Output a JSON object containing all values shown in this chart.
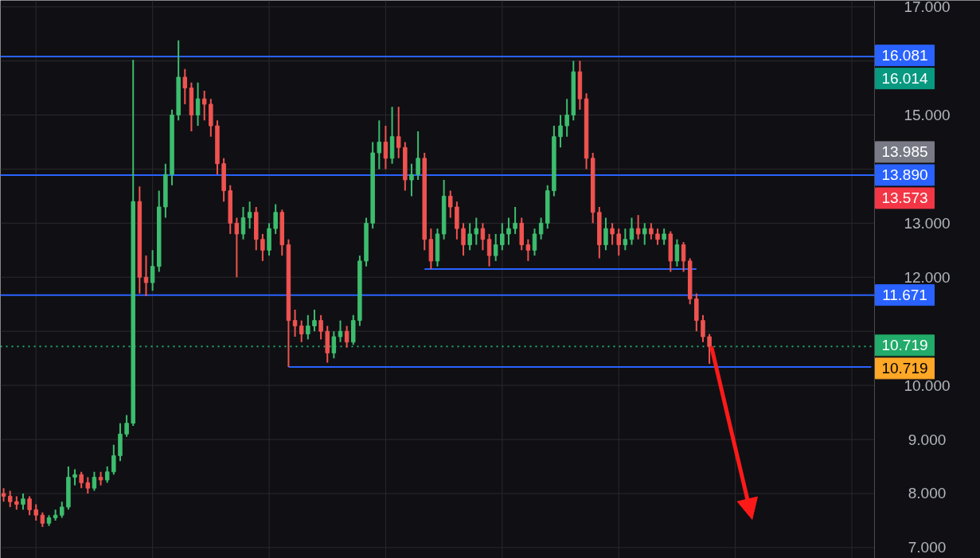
{
  "chart_data": {
    "type": "candlestick",
    "categories": [
      null,
      null,
      null,
      null,
      null,
      null,
      null,
      null,
      null,
      null,
      null,
      null,
      null,
      null,
      null,
      null,
      null,
      null,
      null,
      null,
      null,
      null,
      null,
      null,
      null,
      null,
      null,
      null,
      null,
      null,
      null,
      null,
      null,
      null,
      null,
      null,
      null,
      null,
      null,
      null,
      null,
      null,
      null,
      null,
      null,
      null,
      null,
      null,
      null,
      null,
      null,
      null,
      null,
      null,
      null,
      null,
      null,
      null,
      null,
      null,
      null,
      null,
      null,
      null,
      null,
      null,
      null,
      null,
      null,
      null,
      null,
      null,
      null,
      null,
      null,
      null,
      null,
      null,
      null,
      null,
      null,
      null,
      null,
      null,
      null,
      null,
      null,
      null,
      null,
      null,
      null,
      null,
      null,
      null,
      null,
      null,
      null,
      null,
      null,
      null,
      null,
      null,
      null,
      null,
      null,
      null,
      null,
      null,
      null,
      null,
      null,
      null,
      null,
      null,
      null,
      null,
      null,
      null,
      null,
      null,
      null,
      null,
      null,
      null,
      null,
      null,
      null,
      null,
      null,
      null,
      null,
      null,
      null,
      null,
      null
    ],
    "ohlc": [
      [
        8.0,
        8.1,
        7.85,
        7.95
      ],
      [
        7.95,
        8.05,
        7.75,
        7.85
      ],
      [
        7.85,
        7.95,
        7.7,
        7.8
      ],
      [
        7.8,
        8.0,
        7.7,
        7.9
      ],
      [
        7.9,
        7.95,
        7.6,
        7.7
      ],
      [
        7.7,
        7.8,
        7.5,
        7.6
      ],
      [
        7.6,
        7.65,
        7.38,
        7.45
      ],
      [
        7.45,
        7.6,
        7.4,
        7.55
      ],
      [
        7.55,
        7.7,
        7.5,
        7.6
      ],
      [
        7.6,
        7.85,
        7.55,
        7.75
      ],
      [
        7.75,
        8.5,
        7.7,
        8.3
      ],
      [
        8.3,
        8.45,
        8.15,
        8.35
      ],
      [
        8.35,
        8.4,
        8.1,
        8.2
      ],
      [
        8.2,
        8.3,
        8.0,
        8.1
      ],
      [
        8.1,
        8.4,
        8.05,
        8.3
      ],
      [
        8.3,
        8.4,
        8.15,
        8.25
      ],
      [
        8.25,
        8.5,
        8.2,
        8.4
      ],
      [
        8.4,
        8.9,
        8.35,
        8.7
      ],
      [
        8.7,
        9.3,
        8.6,
        9.1
      ],
      [
        9.1,
        9.45,
        9.05,
        9.3
      ],
      [
        9.3,
        16.02,
        9.25,
        13.4
      ],
      [
        13.4,
        13.68,
        11.7,
        12.0
      ],
      [
        12.0,
        12.4,
        11.65,
        11.9
      ],
      [
        11.9,
        12.5,
        11.75,
        12.2
      ],
      [
        12.2,
        13.6,
        12.1,
        13.3
      ],
      [
        13.3,
        14.1,
        13.1,
        13.9
      ],
      [
        13.9,
        15.1,
        13.7,
        15.0
      ],
      [
        15.0,
        16.38,
        14.9,
        15.7
      ],
      [
        15.7,
        15.85,
        15.2,
        15.5
      ],
      [
        15.5,
        15.6,
        14.7,
        15.0
      ],
      [
        15.0,
        15.6,
        14.8,
        15.3
      ],
      [
        15.3,
        15.45,
        14.9,
        15.2
      ],
      [
        15.2,
        15.3,
        14.6,
        14.8
      ],
      [
        14.8,
        14.9,
        13.9,
        14.1
      ],
      [
        14.1,
        14.2,
        13.4,
        13.6
      ],
      [
        13.6,
        13.7,
        12.8,
        13.0
      ],
      [
        13.0,
        13.1,
        12.0,
        12.8
      ],
      [
        12.8,
        13.3,
        12.7,
        13.1
      ],
      [
        13.1,
        13.4,
        12.9,
        13.2
      ],
      [
        13.2,
        13.3,
        12.5,
        12.7
      ],
      [
        12.7,
        12.8,
        12.3,
        12.5
      ],
      [
        12.5,
        13.0,
        12.4,
        12.9
      ],
      [
        12.9,
        13.35,
        12.8,
        13.2
      ],
      [
        13.2,
        13.25,
        12.4,
        12.6
      ],
      [
        12.6,
        12.7,
        10.34,
        11.2
      ],
      [
        11.2,
        11.4,
        10.9,
        11.1
      ],
      [
        11.1,
        11.2,
        10.8,
        10.95
      ],
      [
        10.95,
        11.3,
        10.85,
        11.1
      ],
      [
        11.1,
        11.4,
        11.0,
        11.2
      ],
      [
        11.2,
        11.3,
        10.85,
        11.0
      ],
      [
        11.0,
        11.1,
        10.42,
        10.6
      ],
      [
        10.6,
        11.0,
        10.5,
        10.9
      ],
      [
        10.9,
        11.2,
        10.8,
        11.0
      ],
      [
        11.0,
        11.1,
        10.7,
        10.8
      ],
      [
        10.8,
        11.3,
        10.75,
        11.2
      ],
      [
        11.2,
        12.4,
        11.1,
        12.3
      ],
      [
        12.3,
        13.1,
        12.2,
        13.0
      ],
      [
        13.0,
        14.5,
        12.9,
        14.3
      ],
      [
        14.3,
        14.9,
        14.0,
        14.5
      ],
      [
        14.5,
        14.8,
        14.0,
        14.2
      ],
      [
        14.2,
        15.15,
        14.1,
        14.6
      ],
      [
        14.6,
        15.15,
        14.2,
        14.4
      ],
      [
        14.4,
        14.5,
        13.6,
        13.8
      ],
      [
        13.8,
        14.1,
        13.5,
        13.9
      ],
      [
        13.9,
        14.7,
        13.8,
        14.2
      ],
      [
        14.2,
        14.3,
        12.5,
        12.7
      ],
      [
        12.7,
        12.9,
        12.15,
        12.3
      ],
      [
        12.3,
        12.9,
        12.2,
        12.8
      ],
      [
        12.8,
        13.8,
        12.7,
        13.5
      ],
      [
        13.5,
        13.6,
        13.1,
        13.3
      ],
      [
        13.3,
        13.4,
        12.7,
        12.9
      ],
      [
        12.9,
        13.0,
        12.4,
        12.6
      ],
      [
        12.6,
        13.0,
        12.5,
        12.8
      ],
      [
        12.8,
        13.1,
        12.6,
        12.9
      ],
      [
        12.9,
        13.0,
        12.5,
        12.7
      ],
      [
        12.7,
        12.8,
        12.2,
        12.4
      ],
      [
        12.4,
        12.8,
        12.3,
        12.6
      ],
      [
        12.6,
        13.0,
        12.5,
        12.8
      ],
      [
        12.8,
        13.1,
        12.6,
        12.9
      ],
      [
        12.9,
        13.3,
        12.8,
        13.0
      ],
      [
        13.0,
        13.1,
        12.5,
        12.6
      ],
      [
        12.6,
        12.7,
        12.3,
        12.5
      ],
      [
        12.5,
        12.9,
        12.4,
        12.8
      ],
      [
        12.8,
        13.1,
        12.7,
        13.0
      ],
      [
        13.0,
        13.7,
        12.9,
        13.6
      ],
      [
        13.6,
        14.8,
        13.5,
        14.6
      ],
      [
        14.6,
        15.0,
        14.4,
        14.8
      ],
      [
        14.8,
        15.3,
        14.6,
        15.0
      ],
      [
        15.0,
        16.0,
        14.9,
        15.8
      ],
      [
        15.8,
        16.0,
        15.1,
        15.3
      ],
      [
        15.3,
        15.4,
        14.0,
        14.2
      ],
      [
        14.2,
        14.3,
        13.0,
        13.2
      ],
      [
        13.2,
        13.3,
        12.35,
        12.6
      ],
      [
        12.6,
        13.1,
        12.5,
        12.9
      ],
      [
        12.9,
        13.0,
        12.6,
        12.8
      ],
      [
        12.8,
        12.9,
        12.4,
        12.6
      ],
      [
        12.6,
        12.9,
        12.5,
        12.7
      ],
      [
        12.7,
        13.1,
        12.6,
        12.9
      ],
      [
        12.9,
        13.15,
        12.7,
        12.8
      ],
      [
        12.8,
        13.0,
        12.6,
        12.9
      ],
      [
        12.9,
        13.0,
        12.7,
        12.8
      ],
      [
        12.8,
        12.9,
        12.6,
        12.7
      ],
      [
        12.7,
        12.9,
        12.6,
        12.8
      ],
      [
        12.8,
        12.85,
        12.1,
        12.3
      ],
      [
        12.3,
        12.7,
        12.2,
        12.6
      ],
      [
        12.6,
        12.65,
        12.1,
        12.3
      ],
      [
        12.3,
        12.35,
        11.5,
        11.6
      ],
      [
        11.6,
        11.7,
        11.0,
        11.2
      ],
      [
        11.2,
        11.3,
        10.8,
        10.9
      ],
      [
        10.9,
        10.95,
        10.4,
        10.719
      ],
      null,
      null,
      null,
      null,
      null,
      null,
      null,
      null,
      null,
      null,
      null,
      null,
      null,
      null,
      null,
      null,
      null,
      null,
      null,
      null,
      null,
      null,
      null,
      null,
      null
    ],
    "series": [
      {
        "type": "line",
        "color": "#2962ff",
        "values": [
          null,
          null,
          null,
          null,
          null,
          null,
          null,
          null,
          null,
          null,
          null,
          null,
          null,
          null,
          null,
          null,
          null,
          null,
          null,
          null,
          null,
          null,
          null,
          null,
          null,
          null,
          null,
          null,
          null,
          null,
          null,
          null,
          null,
          null,
          null,
          null,
          null,
          null,
          null,
          null,
          null,
          null,
          null,
          null,
          null,
          null,
          null,
          null,
          null,
          null,
          null,
          null,
          null,
          null,
          null,
          null,
          null,
          null,
          null,
          null,
          null,
          null,
          null,
          null,
          null,
          12.15,
          12.15,
          12.15,
          12.15,
          12.15,
          12.15,
          12.15,
          12.15,
          12.15,
          12.15,
          12.15,
          12.15,
          12.15,
          12.15,
          12.15,
          12.15,
          12.15,
          12.15,
          12.15,
          12.15,
          12.15,
          12.15,
          12.15,
          12.15,
          12.15,
          12.15,
          12.15,
          12.15,
          12.15,
          12.15,
          12.15,
          12.15,
          12.15,
          12.15,
          12.15,
          12.15,
          12.15,
          12.15,
          12.15,
          12.15,
          12.15,
          12.15,
          12.15,
          null,
          null,
          null,
          null,
          null,
          null,
          null,
          null,
          null,
          null,
          null,
          null,
          null,
          null,
          null,
          null,
          null,
          null,
          null,
          null,
          null,
          null,
          null,
          null,
          null,
          null,
          null
        ]
      },
      {
        "type": "line",
        "color": "#2962ff",
        "values": [
          null,
          null,
          null,
          null,
          null,
          null,
          null,
          null,
          null,
          null,
          null,
          null,
          null,
          null,
          null,
          null,
          null,
          null,
          null,
          null,
          null,
          null,
          null,
          null,
          null,
          null,
          null,
          null,
          null,
          null,
          null,
          null,
          null,
          null,
          null,
          null,
          null,
          null,
          null,
          null,
          null,
          null,
          null,
          null,
          10.34,
          10.34,
          10.34,
          10.34,
          10.34,
          10.34,
          10.34,
          10.34,
          10.34,
          10.34,
          10.34,
          10.34,
          10.34,
          10.34,
          10.34,
          10.34,
          10.34,
          10.34,
          10.34,
          10.34,
          10.34,
          10.34,
          10.34,
          10.34,
          10.34,
          10.34,
          10.34,
          10.34,
          10.34,
          10.34,
          10.34,
          10.34,
          10.34,
          10.34,
          10.34,
          10.34,
          10.34,
          10.34,
          10.34,
          10.34,
          10.34,
          10.34,
          10.34,
          10.34,
          10.34,
          10.34,
          10.34,
          10.34,
          10.34,
          10.34,
          10.34,
          10.34,
          10.34,
          10.34,
          10.34,
          10.34,
          10.34,
          10.34,
          10.34,
          10.34,
          10.34,
          10.34,
          10.34,
          10.34,
          10.34,
          10.34,
          10.34,
          10.34,
          10.34,
          10.34,
          10.34,
          10.34,
          10.34,
          10.34,
          10.34,
          10.34,
          10.34,
          10.34,
          10.34,
          10.34,
          10.34,
          10.34,
          10.34,
          10.34,
          10.34,
          10.34,
          10.34,
          10.34,
          10.34,
          10.34,
          10.34
        ]
      }
    ],
    "colors": [
      "#ef5350",
      "#ef5350",
      "#ef5350",
      "#3dbd6e",
      "#ef5350",
      "#ef5350",
      "#ef5350",
      "#3dbd6e",
      "#3dbd6e",
      "#3dbd6e",
      "#3dbd6e",
      "#3dbd6e",
      "#ef5350",
      "#ef5350",
      "#3dbd6e",
      "#ef5350",
      "#3dbd6e",
      "#3dbd6e",
      "#3dbd6e",
      "#3dbd6e",
      "#3dbd6e",
      "#ef5350",
      "#ef5350",
      "#3dbd6e",
      "#3dbd6e",
      "#3dbd6e",
      "#3dbd6e",
      "#3dbd6e",
      "#ef5350",
      "#ef5350",
      "#3dbd6e",
      "#ef5350",
      "#ef5350",
      "#ef5350",
      "#ef5350",
      "#ef5350",
      "#ef5350",
      "#3dbd6e",
      "#3dbd6e",
      "#ef5350",
      "#ef5350",
      "#3dbd6e",
      "#3dbd6e",
      "#ef5350",
      "#ef5350",
      "#ef5350",
      "#ef5350",
      "#3dbd6e",
      "#3dbd6e",
      "#ef5350",
      "#ef5350",
      "#3dbd6e",
      "#3dbd6e",
      "#ef5350",
      "#3dbd6e",
      "#3dbd6e",
      "#3dbd6e",
      "#3dbd6e",
      "#3dbd6e",
      "#ef5350",
      "#3dbd6e",
      "#ef5350",
      "#ef5350",
      "#3dbd6e",
      "#3dbd6e",
      "#ef5350",
      "#ef5350",
      "#3dbd6e",
      "#3dbd6e",
      "#ef5350",
      "#ef5350",
      "#ef5350",
      "#3dbd6e",
      "#3dbd6e",
      "#ef5350",
      "#ef5350",
      "#3dbd6e",
      "#3dbd6e",
      "#3dbd6e",
      "#3dbd6e",
      "#ef5350",
      "#ef5350",
      "#3dbd6e",
      "#3dbd6e",
      "#3dbd6e",
      "#3dbd6e",
      "#3dbd6e",
      "#3dbd6e",
      "#3dbd6e",
      "#ef5350",
      "#ef5350",
      "#ef5350",
      "#ef5350",
      "#3dbd6e",
      "#ef5350",
      "#ef5350",
      "#3dbd6e",
      "#3dbd6e",
      "#ef5350",
      "#3dbd6e",
      "#ef5350",
      "#ef5350",
      "#3dbd6e",
      "#ef5350",
      "#3dbd6e",
      "#ef5350",
      "#ef5350",
      "#ef5350",
      "#ef5350",
      "#ef5350",
      null,
      null,
      null,
      null,
      null,
      null,
      null,
      null,
      null,
      null,
      null,
      null,
      null,
      null,
      null,
      null,
      null,
      null,
      null,
      null,
      null,
      null,
      null,
      null,
      null
    ],
    "ylim": [
      6.8,
      17.12
    ],
    "yticks": [
      {
        "value": 7,
        "label": "7.000"
      },
      {
        "value": 8,
        "label": "8.000"
      },
      {
        "value": 9,
        "label": "9.000"
      },
      {
        "value": 10,
        "label": "10.000"
      },
      {
        "value": 11,
        "label": null
      },
      {
        "value": 12,
        "label": "12.000"
      },
      {
        "value": 13,
        "label": "13.000"
      },
      {
        "value": 14,
        "label": null
      },
      {
        "value": 15,
        "label": "15.000"
      },
      {
        "value": 16,
        "label": null
      },
      {
        "value": 17,
        "label": "17.000"
      }
    ],
    "ref_lines": [
      {
        "axis": "y",
        "value": 16.081,
        "label": "16.081",
        "color": "#2962ff",
        "line_style": "solid"
      },
      {
        "axis": "y",
        "value": 13.89,
        "label": "13.890",
        "color": "#2962ff",
        "line_style": "solid"
      },
      {
        "axis": "y",
        "value": 11.671,
        "label": "11.671",
        "color": "#2962ff",
        "line_style": "solid"
      },
      {
        "axis": "y",
        "value": 10.719,
        "label": "10.719",
        "color": "#22ab6a",
        "line_style": "dotted"
      }
    ],
    "annotations": [
      "16.014",
      "13.985",
      "13.573",
      "10.719"
    ],
    "grid": true,
    "tick_labels": "y"
  }
}
